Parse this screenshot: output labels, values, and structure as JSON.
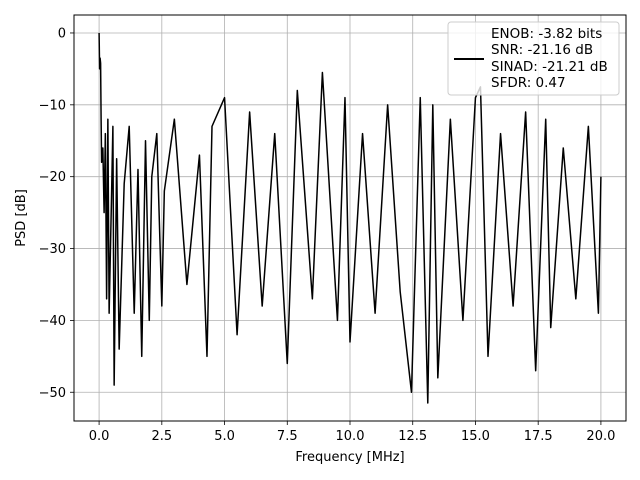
{
  "chart_data": {
    "type": "line",
    "title": "",
    "xlabel": "Frequency [MHz]",
    "ylabel": "PSD [dB]",
    "xlim": [
      -1.0,
      21.0
    ],
    "ylim": [
      -54.0,
      2.5
    ],
    "xticks": [
      0.0,
      2.5,
      5.0,
      7.5,
      10.0,
      12.5,
      15.0,
      17.5,
      20.0
    ],
    "xtick_labels": [
      "0.0",
      "2.5",
      "5.0",
      "7.5",
      "10.0",
      "12.5",
      "15.0",
      "17.5",
      "20.0"
    ],
    "yticks": [
      0,
      -10,
      -20,
      -30,
      -40,
      -50
    ],
    "ytick_labels": [
      "0",
      "−10",
      "−20",
      "−30",
      "−40",
      "−50"
    ],
    "grid": true,
    "legend_position": "upper-right",
    "legend": [
      "ENOB: -3.82 bits",
      "SNR: -21.16 dB",
      "SINAD: -21.21 dB",
      "SFDR: 0.47"
    ],
    "line_color": "#000000",
    "series": [
      {
        "x": [
          0.0,
          0.02,
          0.04,
          0.06,
          0.08,
          0.1,
          0.15,
          0.2,
          0.25,
          0.3,
          0.35,
          0.4,
          0.5,
          0.55,
          0.6,
          0.7,
          0.8,
          1.0,
          1.2,
          1.4,
          1.55,
          1.7,
          1.85,
          2.0,
          2.1,
          2.3,
          2.5,
          2.6,
          3.0,
          3.5,
          4.0,
          4.3,
          4.5,
          5.0,
          5.5,
          6.0,
          6.5,
          7.0,
          7.5,
          7.9,
          8.5,
          8.9,
          9.5,
          9.8,
          10.0,
          10.5,
          11.0,
          11.5,
          12.0,
          12.45,
          12.8,
          13.1,
          13.3,
          13.5,
          14.0,
          14.5,
          15.0,
          15.2,
          15.5,
          16.0,
          16.5,
          17.0,
          17.4,
          17.8,
          18.0,
          18.5,
          19.0,
          19.5,
          19.9,
          20.0
        ],
        "y": [
          0.0,
          -5.0,
          -3.5,
          -4.2,
          -12.0,
          -18.0,
          -16.0,
          -25.0,
          -14.0,
          -37.0,
          -12.0,
          -39.0,
          -22.0,
          -13.0,
          -49.0,
          -17.5,
          -44.0,
          -21.0,
          -13.0,
          -39.0,
          -19.0,
          -45.0,
          -15.0,
          -40.0,
          -20.0,
          -14.0,
          -38.0,
          -22.0,
          -12.0,
          -35.0,
          -17.0,
          -45.0,
          -13.0,
          -9.0,
          -42.0,
          -11.0,
          -38.0,
          -14.0,
          -46.0,
          -8.0,
          -37.0,
          -5.5,
          -40.0,
          -9.0,
          -43.0,
          -14.0,
          -39.0,
          -10.0,
          -36.0,
          -50.0,
          -9.0,
          -51.5,
          -10.0,
          -48.0,
          -12.0,
          -40.0,
          -9.0,
          -7.5,
          -45.0,
          -14.0,
          -38.0,
          -11.0,
          -47.0,
          -12.0,
          -41.0,
          -16.0,
          -37.0,
          -13.0,
          -39.0,
          -20.0
        ]
      }
    ]
  }
}
